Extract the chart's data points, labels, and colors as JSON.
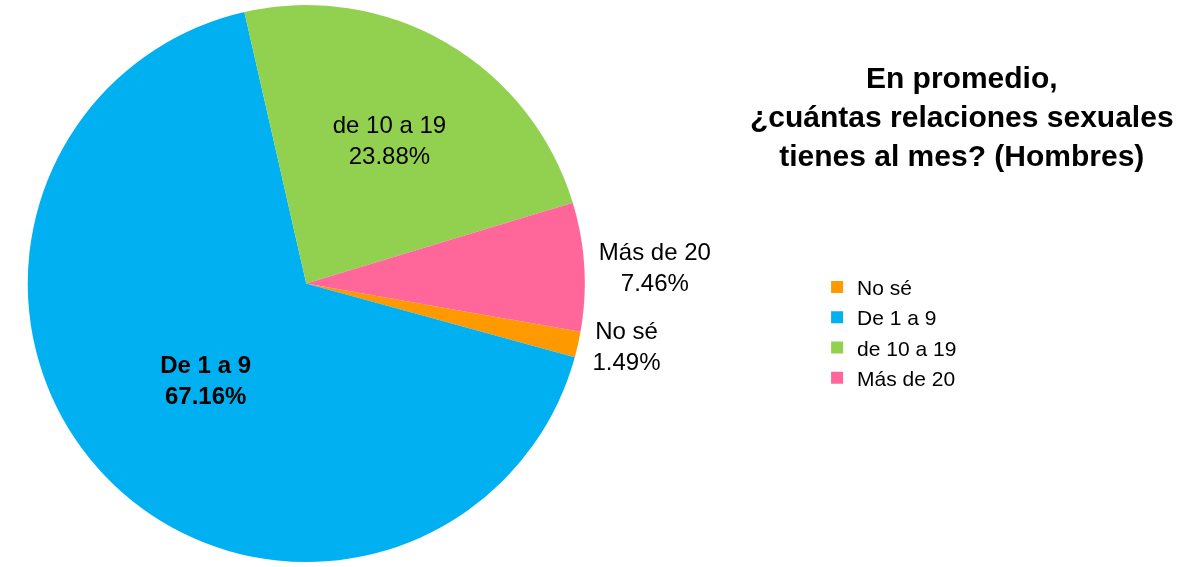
{
  "chart_data": {
    "type": "pie",
    "title": "En promedio,\n¿cuántas relaciones sexuales\ntienes al mes? (Hombres)",
    "categories": [
      "No sé",
      "De 1 a 9",
      "de 10 a 19",
      "Más de 20"
    ],
    "values": [
      1.49,
      67.16,
      23.88,
      7.46
    ],
    "value_labels": [
      "1.49%",
      "67.16%",
      "23.88%",
      "7.46%"
    ],
    "colors": [
      "#ff9900",
      "#00b0f0",
      "#92d050",
      "#ff6699"
    ],
    "legend": "right"
  }
}
